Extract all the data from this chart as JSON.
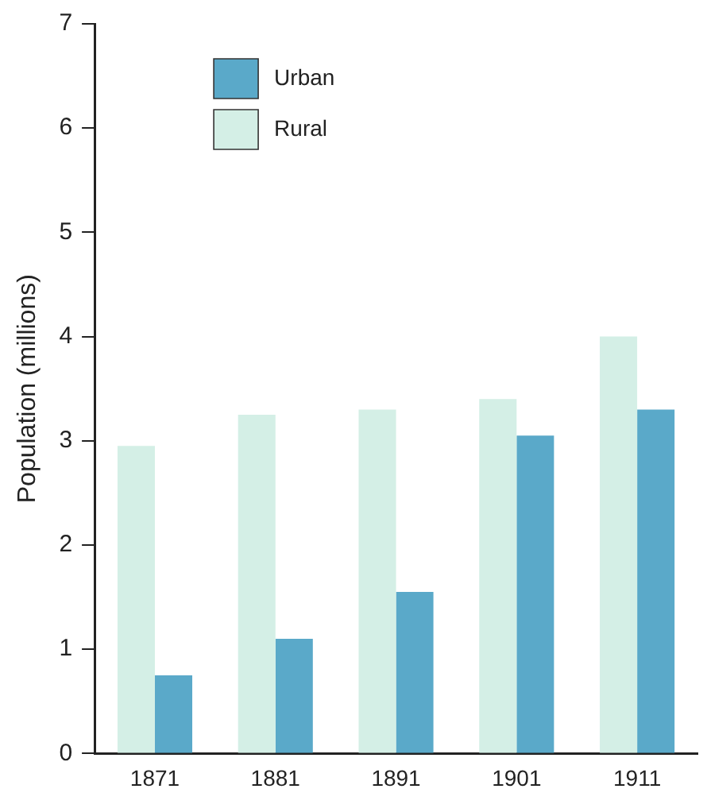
{
  "chart_data": {
    "type": "bar",
    "ylabel": "Population (millions)",
    "categories": [
      "1871",
      "1881",
      "1891",
      "1901",
      "1911"
    ],
    "series": [
      {
        "name": "Rural",
        "color": "#d4efe6",
        "values": [
          2.95,
          3.25,
          3.3,
          3.4,
          4.0
        ]
      },
      {
        "name": "Urban",
        "color": "#5aa9c9",
        "values": [
          0.75,
          1.1,
          1.55,
          3.05,
          3.3
        ]
      }
    ],
    "ylim": [
      0,
      7
    ],
    "yticks": [
      0,
      1,
      2,
      3,
      4,
      5,
      6,
      7
    ],
    "grid": false,
    "legend": "top left"
  }
}
